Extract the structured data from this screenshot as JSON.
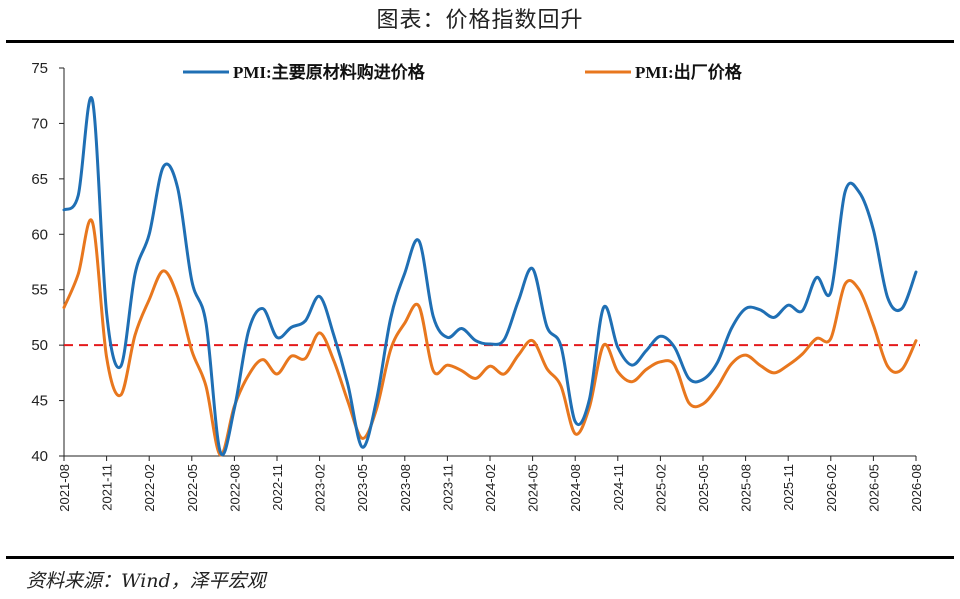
{
  "title": "图表：价格指数回升",
  "source": "资料来源：Wind，泽平宏观",
  "colors": {
    "series_0": "#1f6fb4",
    "series_1": "#e8771e",
    "reference": "#e41a1c"
  },
  "chart_data": {
    "type": "line",
    "title": "图表：价格指数回升",
    "ylim": [
      40,
      75
    ],
    "yticks": [
      40,
      45,
      50,
      55,
      60,
      65,
      70,
      75
    ],
    "xlim": [
      "2021-08",
      "2026-08"
    ],
    "x_tick_labels": [
      "2021-08",
      "2021-11",
      "2022-02",
      "2022-05",
      "2022-08",
      "2022-11",
      "2023-02",
      "2023-05",
      "2023-08",
      "2023-11",
      "2024-02",
      "2024-05",
      "2024-08",
      "2024-11",
      "2025-02",
      "2025-05",
      "2025-08",
      "2025-11",
      "2026-02",
      "2026-05",
      "2026-08"
    ],
    "x": [
      "2021-08",
      "2021-09",
      "2021-10",
      "2021-11",
      "2021-12",
      "2022-01",
      "2022-02",
      "2022-03",
      "2022-04",
      "2022-05",
      "2022-06",
      "2022-07",
      "2022-08",
      "2022-09",
      "2022-10",
      "2022-11",
      "2022-12",
      "2023-01",
      "2023-02",
      "2023-03",
      "2023-04",
      "2023-05",
      "2023-06",
      "2023-07",
      "2023-08",
      "2023-09",
      "2023-10",
      "2023-11",
      "2023-12",
      "2024-01",
      "2024-02",
      "2024-03",
      "2024-04",
      "2024-05",
      "2024-06",
      "2024-07",
      "2024-08",
      "2024-09",
      "2024-10",
      "2024-11",
      "2024-12",
      "2025-01",
      "2025-02",
      "2025-03",
      "2025-04",
      "2025-05",
      "2025-06",
      "2025-07",
      "2025-08",
      "2025-09",
      "2025-10",
      "2025-11",
      "2025-12",
      "2026-01",
      "2026-02",
      "2026-03",
      "2026-04",
      "2026-05",
      "2026-06",
      "2026-07",
      "2026-08"
    ],
    "series": [
      {
        "name": "PMI:主要原材料购进价格",
        "values": [
          62.2,
          63.5,
          72.1,
          52.9,
          48.1,
          56.4,
          60.0,
          66.1,
          64.2,
          55.8,
          52.0,
          40.4,
          44.3,
          51.3,
          53.3,
          50.7,
          51.6,
          52.2,
          54.4,
          50.9,
          46.4,
          40.8,
          45.0,
          52.4,
          56.5,
          59.4,
          52.6,
          50.7,
          51.5,
          50.4,
          50.1,
          50.5,
          54.0,
          56.9,
          51.7,
          49.9,
          43.1,
          45.1,
          53.4,
          49.8,
          48.2,
          49.5,
          50.8,
          49.8,
          47.0,
          46.9,
          48.4,
          51.5,
          53.3,
          53.2,
          52.5,
          53.6,
          53.1,
          56.1,
          54.8,
          63.8,
          63.8,
          60.4,
          54.3,
          53.3,
          56.6
        ]
      },
      {
        "name": "PMI:出厂价格",
        "values": [
          53.4,
          56.4,
          61.1,
          48.9,
          45.5,
          50.9,
          54.1,
          56.7,
          54.4,
          49.5,
          46.3,
          40.1,
          44.5,
          47.3,
          48.7,
          47.4,
          49.0,
          48.8,
          51.1,
          48.6,
          44.9,
          41.6,
          44.2,
          49.6,
          52.0,
          53.5,
          47.7,
          48.2,
          47.7,
          47.0,
          48.1,
          47.4,
          49.1,
          50.4,
          47.9,
          46.3,
          42.0,
          44.4,
          50.0,
          47.6,
          46.7,
          47.8,
          48.5,
          48.2,
          44.8,
          44.7,
          46.2,
          48.3,
          49.1,
          48.2,
          47.5,
          48.2,
          49.2,
          50.6,
          50.6,
          55.5,
          55.0,
          51.8,
          48.1,
          47.8,
          50.4
        ]
      }
    ],
    "reference_line": {
      "y": 50,
      "style": "dashed"
    },
    "legend_placement": "top",
    "grid": false
  }
}
